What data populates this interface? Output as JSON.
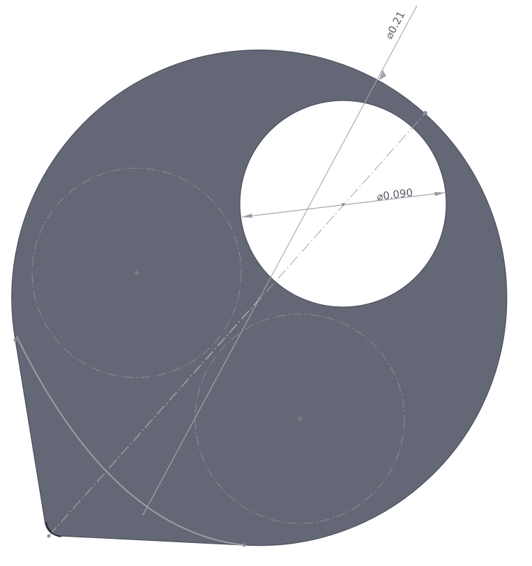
{
  "dimensions": {
    "outer_diameter": {
      "symbol": "⌀",
      "value": "0.21"
    },
    "hole_diameter": {
      "symbol": "⌀",
      "value": "0.090"
    }
  },
  "colors": {
    "part_fill": "#646775",
    "part_edge": "#4d505c",
    "sketch_line": "#a3a6ad",
    "construction_line": "#8b8e97",
    "hole_fill": "#ffffff"
  }
}
